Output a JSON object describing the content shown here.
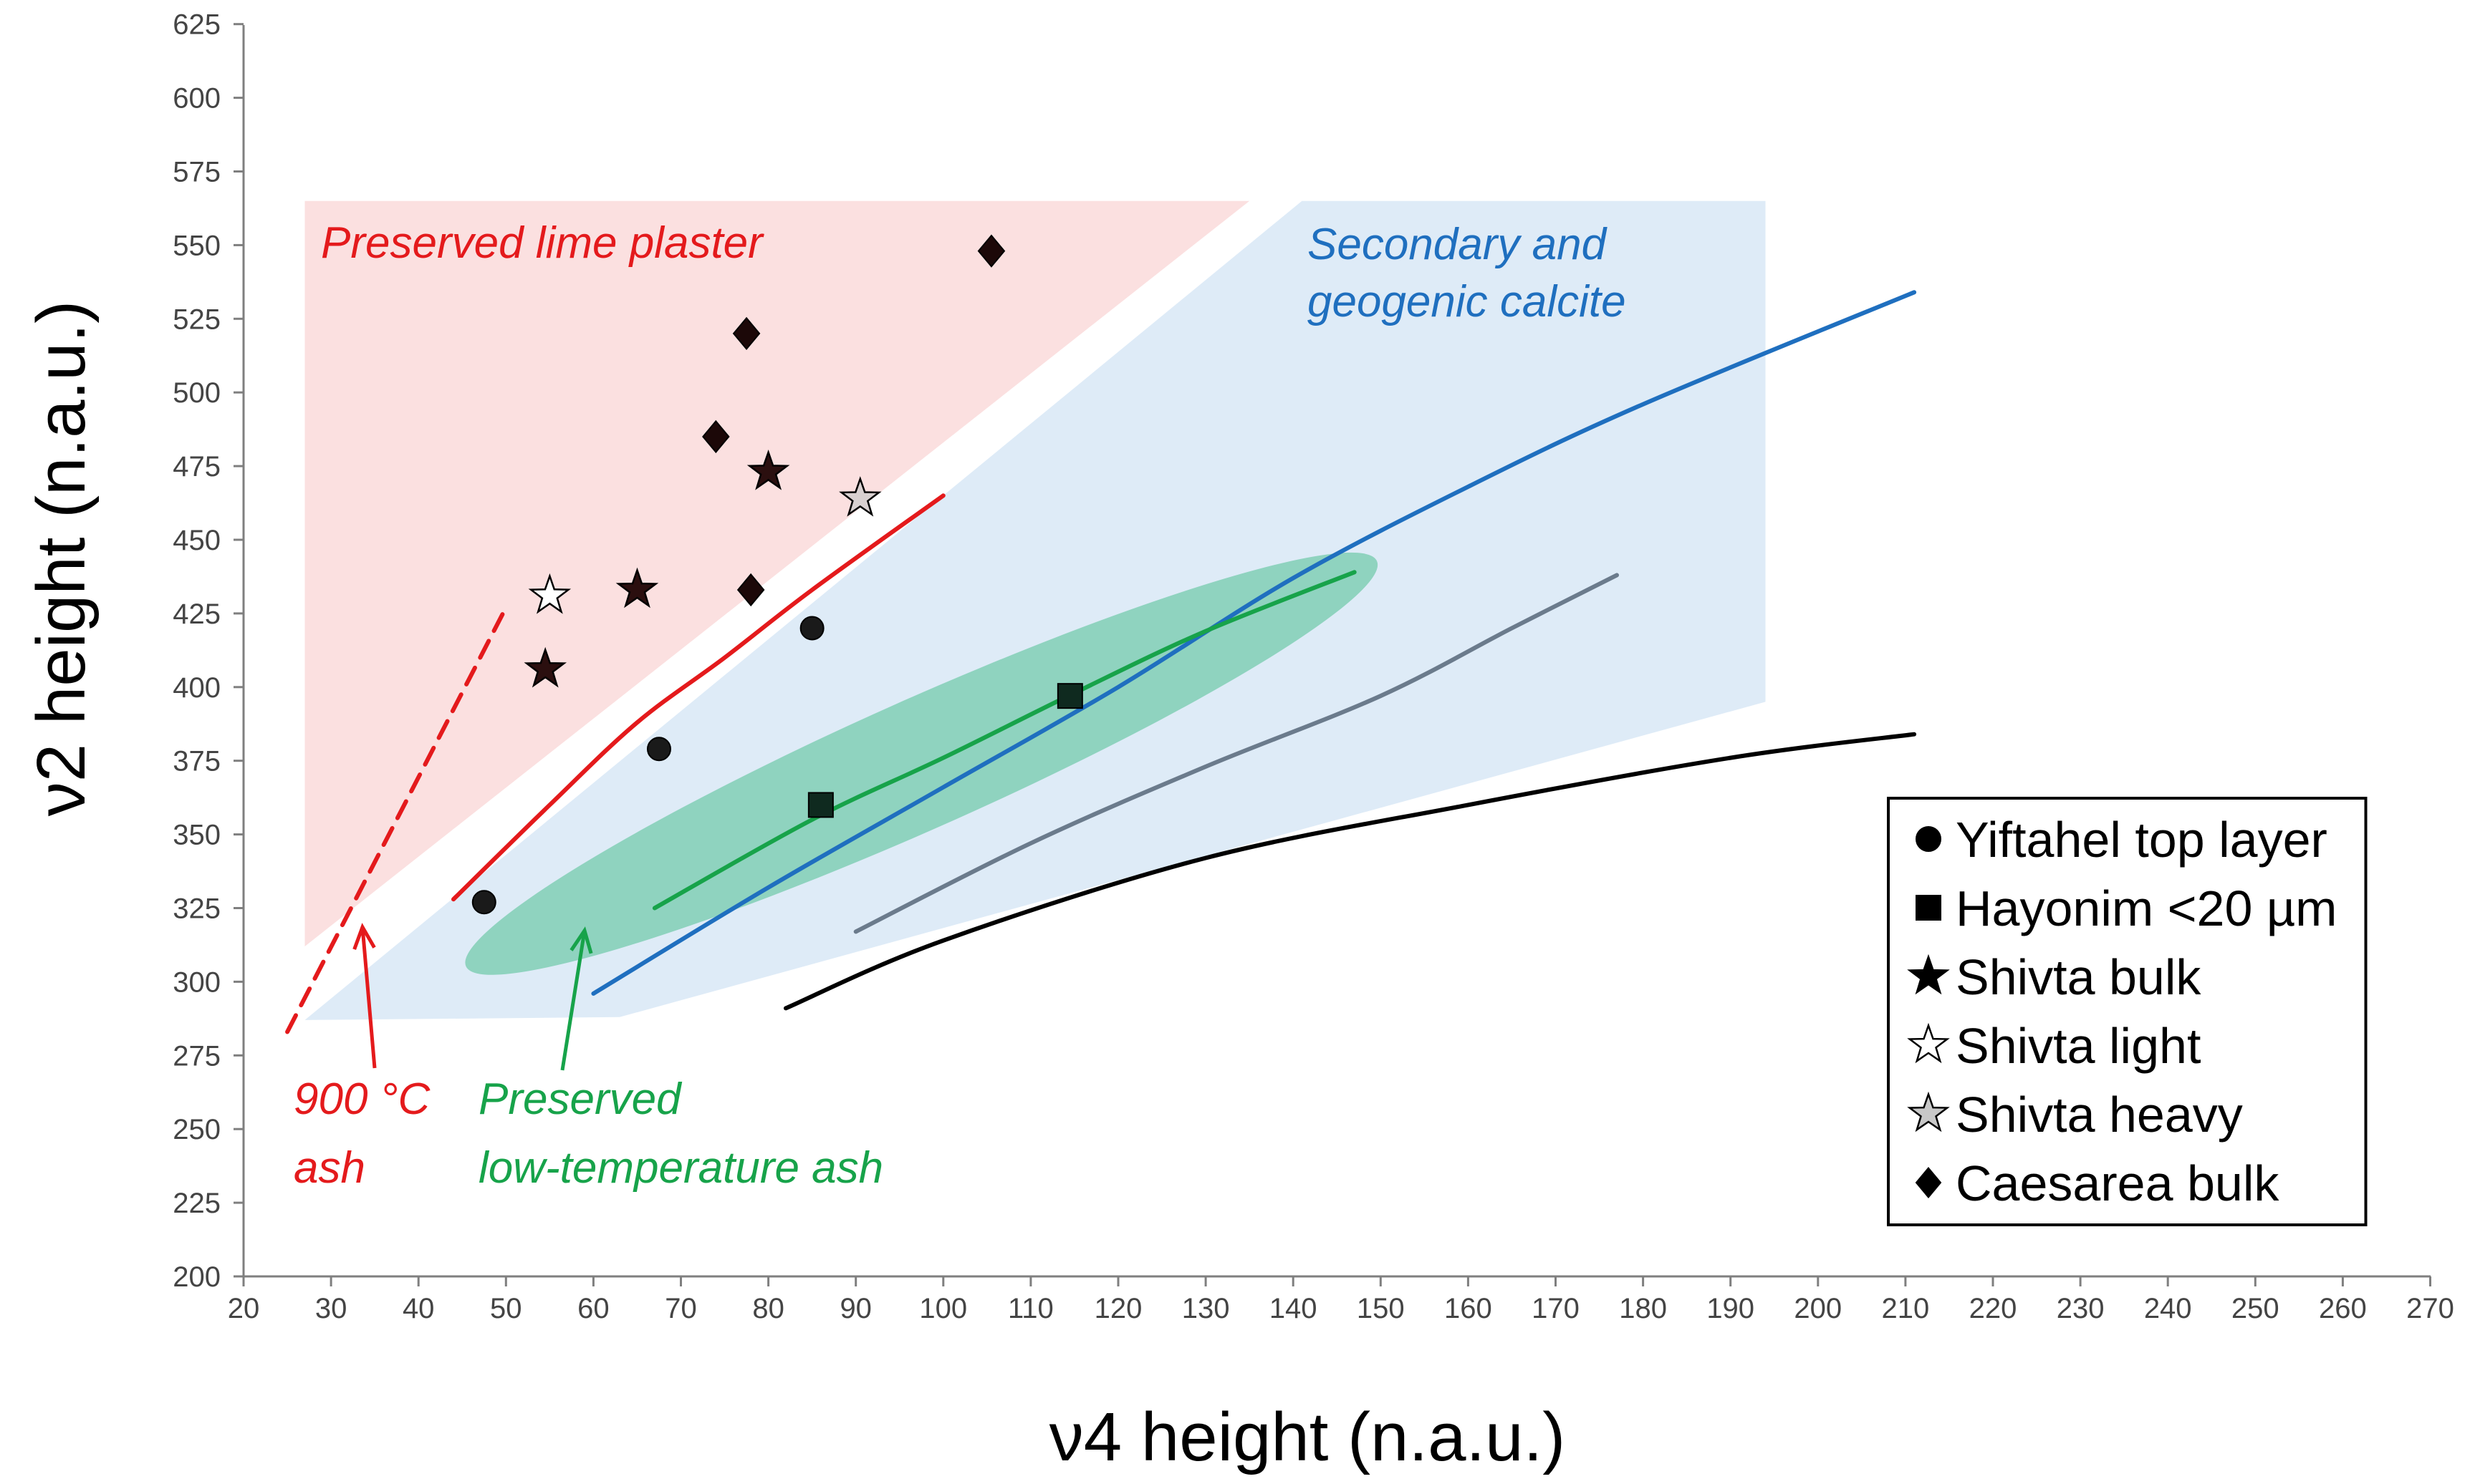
{
  "chart_data": {
    "type": "scatter",
    "xlabel": "ν4 height (n.a.u.)",
    "ylabel": "ν2 height (n.a.u.)",
    "xlim": [
      20,
      270
    ],
    "ylim": [
      200,
      625
    ],
    "x_ticks": [
      20,
      30,
      40,
      50,
      60,
      70,
      80,
      90,
      100,
      110,
      120,
      130,
      140,
      150,
      160,
      170,
      180,
      190,
      200,
      210,
      220,
      230,
      240,
      250,
      260,
      270
    ],
    "y_ticks": [
      200,
      225,
      250,
      275,
      300,
      325,
      350,
      375,
      400,
      425,
      450,
      475,
      500,
      525,
      550,
      575,
      600,
      625
    ],
    "grid": false,
    "legend_position": "bottom-right",
    "colors": {
      "lime_region": "#fbe0e0",
      "calcite_region": "#deebf7",
      "ash_ellipse": "#8fd3bf",
      "red": "#e41a1c",
      "blue": "#1f6fbf",
      "green": "#17a34a",
      "grey": "#6b7b8c",
      "black": "#000000"
    },
    "regions": [
      {
        "name": "Preserved lime plaster",
        "color": "#fbe0e0",
        "polygon": [
          [
            27,
            565
          ],
          [
            135,
            565
          ],
          [
            27,
            312
          ]
        ]
      },
      {
        "name": "Secondary and geogenic calcite",
        "color": "#deebf7",
        "polygon": [
          [
            27,
            287
          ],
          [
            141,
            565
          ],
          [
            194,
            565
          ],
          [
            194,
            395
          ],
          [
            63,
            288
          ]
        ]
      },
      {
        "name": "Preserved low-temperature ash",
        "color": "#8fd3bf",
        "shape": "ellipse",
        "center": [
          97.5,
          374
        ],
        "rx_data": 57,
        "ry_data": 22,
        "angle_deg": -24
      }
    ],
    "trend_lines": [
      {
        "name": "lime plaster trend",
        "color": "#e41a1c",
        "style": "solid",
        "points": [
          [
            44,
            328
          ],
          [
            55,
            360
          ],
          [
            65,
            388
          ],
          [
            75,
            410
          ],
          [
            85,
            433
          ],
          [
            100,
            465
          ]
        ]
      },
      {
        "name": "900 °C ash trend",
        "color": "#e41a1c",
        "style": "dashed",
        "points": [
          [
            25,
            283
          ],
          [
            50,
            427
          ]
        ]
      },
      {
        "name": "secondary calcite trend",
        "color": "#1f6fbf",
        "style": "solid",
        "points": [
          [
            60,
            296
          ],
          [
            80,
            332
          ],
          [
            100,
            366
          ],
          [
            120,
            400
          ],
          [
            140,
            437
          ],
          [
            160,
            468
          ],
          [
            180,
            496
          ],
          [
            211,
            534
          ]
        ]
      },
      {
        "name": "low-temperature ash trend",
        "color": "#17a34a",
        "style": "solid",
        "points": [
          [
            67,
            325
          ],
          [
            85,
            355
          ],
          [
            100,
            376
          ],
          [
            115,
            398
          ],
          [
            130,
            419
          ],
          [
            147,
            439
          ]
        ]
      },
      {
        "name": "grey trend",
        "color": "#6b7b8c",
        "style": "solid",
        "points": [
          [
            90,
            317
          ],
          [
            110,
            347
          ],
          [
            130,
            373
          ],
          [
            150,
            397
          ],
          [
            165,
            420
          ],
          [
            177,
            438
          ]
        ]
      },
      {
        "name": "black trend",
        "color": "#000000",
        "style": "solid",
        "points": [
          [
            82,
            291
          ],
          [
            100,
            314
          ],
          [
            130,
            342
          ],
          [
            160,
            360
          ],
          [
            190,
            376
          ],
          [
            211,
            384
          ]
        ]
      }
    ],
    "series": [
      {
        "name": "Yiftahel top layer",
        "marker": "circle",
        "fill": "#1a1a1a",
        "points": [
          [
            47.5,
            327
          ],
          [
            67.5,
            379
          ],
          [
            85,
            420
          ]
        ]
      },
      {
        "name": "Hayonim <20 µm",
        "marker": "square",
        "fill": "#0f2a1f",
        "points": [
          [
            86,
            360
          ],
          [
            114.5,
            397
          ]
        ]
      },
      {
        "name": "Shivta bulk",
        "marker": "star",
        "fill": "#2b0f0f",
        "points": [
          [
            54.5,
            406
          ],
          [
            65,
            433
          ],
          [
            80,
            473
          ]
        ]
      },
      {
        "name": "Shivta light",
        "marker": "star",
        "fill": "#ffffff",
        "points": [
          [
            55,
            431
          ]
        ]
      },
      {
        "name": "Shivta heavy",
        "marker": "star",
        "fill": "#d8d0d0",
        "points": [
          [
            90.5,
            464
          ]
        ]
      },
      {
        "name": "Caesarea bulk",
        "marker": "diamond",
        "fill": "#1c0808",
        "points": [
          [
            74,
            485
          ],
          [
            78,
            433
          ],
          [
            77.5,
            520
          ],
          [
            105.5,
            548
          ]
        ]
      }
    ],
    "annotations": [
      {
        "lines": [
          "Preserved lime plaster"
        ],
        "color": "#e41a1c"
      },
      {
        "lines": [
          "Secondary and",
          "geogenic calcite"
        ],
        "color": "#1f6fbf"
      },
      {
        "lines": [
          "900 °C",
          "ash"
        ],
        "color": "#e41a1c"
      },
      {
        "lines": [
          "Preserved",
          "low-temperature ash"
        ],
        "color": "#17a34a"
      }
    ],
    "legend": [
      {
        "label": "Yiftahel top layer",
        "marker": "circle",
        "fill": "#000000"
      },
      {
        "label": "Hayonim <20 µm",
        "marker": "square",
        "fill": "#000000"
      },
      {
        "label": "Shivta bulk",
        "marker": "star",
        "fill": "#000000"
      },
      {
        "label": "Shivta light",
        "marker": "star",
        "fill": "#ffffff"
      },
      {
        "label": "Shivta heavy",
        "marker": "star",
        "fill": "#c8c8c8"
      },
      {
        "label": "Caesarea bulk",
        "marker": "diamond",
        "fill": "#000000"
      }
    ]
  }
}
